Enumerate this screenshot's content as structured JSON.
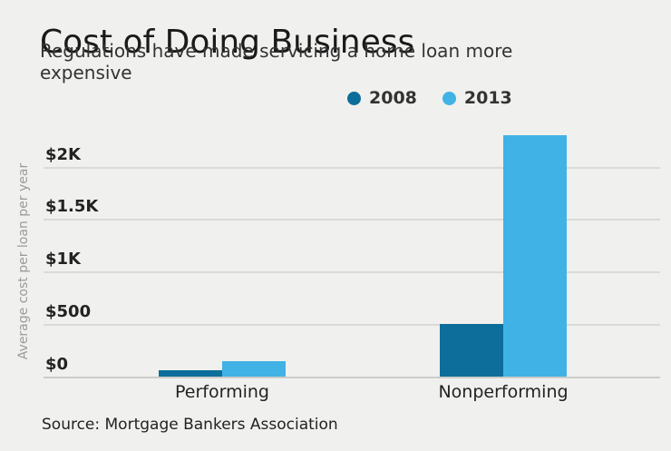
{
  "header": {
    "title": "Cost of Doing Business",
    "subtitle": "Regulations have made servicing a home loan more expensive"
  },
  "source_note": "Source: Mortgage Bankers Association",
  "colors": {
    "background": "#f0f1ee",
    "gridline": "#d9dbd6",
    "baseline": "#cbcdc9",
    "title_text": "#1a1a1a",
    "subtitle_text": "#333333",
    "axis_text": "#222222",
    "y_axis_title_text": "#9b9b9b",
    "series_2008": "#0d6e9b",
    "series_2013": "#41b2e5"
  },
  "chart_data": {
    "type": "bar",
    "title": "Cost of Doing Business",
    "subtitle": "Regulations have made servicing a home loan more expensive",
    "categories": [
      "Performing",
      "Nonperforming"
    ],
    "series": [
      {
        "name": "2008",
        "color": "#0d6e9b",
        "values": [
          60,
          500
        ]
      },
      {
        "name": "2013",
        "color": "#41b2e5",
        "values": [
          150,
          2300
        ]
      }
    ],
    "xlabel": "",
    "ylabel": "Average cost per loan per year",
    "ylim": [
      0,
      2380
    ],
    "yticks": [
      {
        "value": 0,
        "label": "$0"
      },
      {
        "value": 500,
        "label": "$500"
      },
      {
        "value": 1000,
        "label": "$1K"
      },
      {
        "value": 1500,
        "label": "$1.5K"
      },
      {
        "value": 2000,
        "label": "$2K"
      }
    ],
    "grid": true,
    "legend_position": "top",
    "source": "Source: Mortgage Bankers Association"
  }
}
